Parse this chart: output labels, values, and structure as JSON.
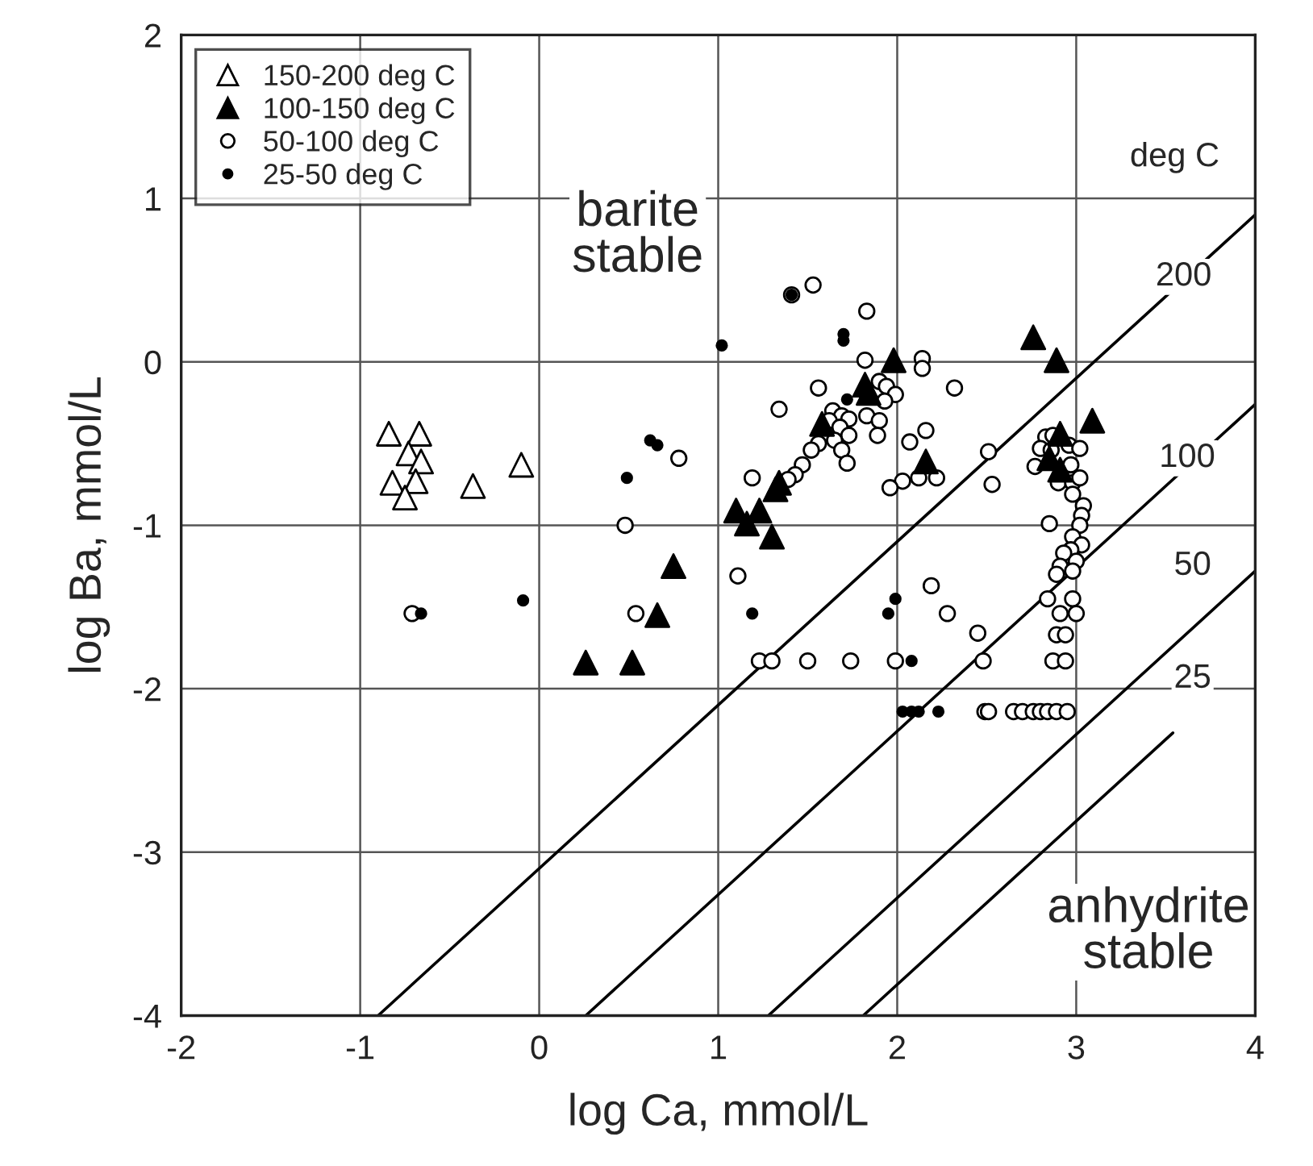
{
  "chart_data": {
    "type": "scatter",
    "xlabel": "log Ca, mmol/L",
    "ylabel": "log Ba, mmol/L",
    "xlim": [
      -2,
      4
    ],
    "ylim": [
      -4,
      2
    ],
    "xticks": [
      -2,
      -1,
      0,
      1,
      2,
      3,
      4
    ],
    "yticks": [
      -4,
      -3,
      -2,
      -1,
      0,
      1,
      2
    ],
    "grid": true,
    "legend": "top left",
    "series": [
      {
        "name": "150-200 deg C",
        "color": "#ffffff",
        "marker": "triangle",
        "x": [
          -0.84,
          -0.67,
          -0.73,
          -0.66,
          -0.82,
          -0.69,
          -0.75,
          -0.37,
          -0.1
        ],
        "values": [
          -0.44,
          -0.44,
          -0.56,
          -0.61,
          -0.74,
          -0.73,
          -0.83,
          -0.76,
          -0.63
        ]
      },
      {
        "name": "100-150 deg C",
        "color": "#000000",
        "marker": "triangle",
        "x": [
          0.75,
          0.66,
          0.26,
          0.52,
          1.1,
          1.23,
          1.16,
          1.3,
          1.32,
          1.34,
          1.58,
          1.82,
          1.98,
          2.16,
          2.76,
          2.89,
          3.09,
          2.91,
          2.85,
          2.91,
          1.84
        ],
        "values": [
          -1.25,
          -1.55,
          -1.84,
          -1.84,
          -0.91,
          -0.91,
          -0.99,
          -1.07,
          -0.78,
          -0.74,
          -0.38,
          -0.14,
          0.01,
          -0.61,
          0.15,
          0.01,
          -0.36,
          -0.44,
          -0.59,
          -0.66,
          -0.19
        ]
      },
      {
        "name": "50-100 deg C",
        "color": "#ffffff",
        "marker": "circle",
        "x": [
          0.78,
          0.48,
          -0.71,
          0.54,
          1.53,
          1.41,
          1.83,
          1.82,
          2.14,
          2.14,
          2.32,
          1.56,
          1.34,
          1.9,
          1.94,
          1.99,
          1.93,
          1.83,
          1.9,
          1.89,
          1.64,
          1.69,
          1.73,
          1.62,
          1.68,
          1.73,
          1.65,
          1.69,
          1.72,
          1.56,
          1.52,
          1.47,
          1.43,
          1.39,
          1.19,
          2.16,
          2.07,
          2.03,
          1.96,
          2.12,
          2.22,
          2.51,
          2.53,
          2.83,
          2.87,
          2.8,
          2.77,
          2.86,
          2.96,
          3.02,
          2.97,
          2.9,
          2.98,
          3.02,
          2.98,
          3.04,
          3.03,
          3.02,
          2.85,
          2.98,
          3.03,
          2.97,
          2.93,
          3.0,
          2.91,
          2.89,
          2.98,
          2.84,
          2.98,
          2.91,
          3.0,
          2.89,
          2.94,
          2.87,
          2.94,
          1.23,
          1.3,
          1.5,
          1.74,
          1.99,
          2.48,
          1.11,
          2.19,
          2.28,
          2.45,
          2.49,
          2.51,
          2.65,
          2.7,
          2.76,
          2.8,
          2.84,
          2.89,
          2.95
        ],
        "values": [
          -0.59,
          -1.0,
          -1.54,
          -1.54,
          0.47,
          0.41,
          0.31,
          0.01,
          0.02,
          -0.04,
          -0.16,
          -0.16,
          -0.29,
          -0.12,
          -0.15,
          -0.2,
          -0.24,
          -0.33,
          -0.36,
          -0.45,
          -0.3,
          -0.33,
          -0.35,
          -0.36,
          -0.4,
          -0.45,
          -0.48,
          -0.54,
          -0.62,
          -0.5,
          -0.54,
          -0.63,
          -0.69,
          -0.72,
          -0.71,
          -0.42,
          -0.49,
          -0.73,
          -0.77,
          -0.71,
          -0.71,
          -0.55,
          -0.75,
          -0.46,
          -0.45,
          -0.53,
          -0.64,
          -0.54,
          -0.51,
          -0.53,
          -0.63,
          -0.74,
          -0.74,
          -0.71,
          -0.81,
          -0.88,
          -0.94,
          -1.0,
          -0.99,
          -1.07,
          -1.12,
          -1.15,
          -1.17,
          -1.22,
          -1.25,
          -1.3,
          -1.28,
          -1.45,
          -1.45,
          -1.54,
          -1.54,
          -1.67,
          -1.67,
          -1.83,
          -1.83,
          -1.83,
          -1.83,
          -1.83,
          -1.83,
          -1.83,
          -1.83,
          -1.31,
          -1.37,
          -1.54,
          -1.66,
          -2.14,
          -2.14,
          -2.14,
          -2.14,
          -2.14,
          -2.14,
          -2.14,
          -2.14,
          -2.14
        ]
      },
      {
        "name": "25-50 deg C",
        "color": "#000000",
        "marker": "circle",
        "x": [
          0.49,
          0.62,
          0.66,
          -0.66,
          -0.09,
          1.02,
          1.41,
          1.7,
          1.7,
          1.72,
          1.19,
          1.99,
          1.95,
          2.08,
          2.03,
          2.08,
          2.12,
          2.23
        ],
        "values": [
          -0.71,
          -0.48,
          -0.51,
          -1.54,
          -1.46,
          0.1,
          0.41,
          0.17,
          0.13,
          -0.23,
          -1.54,
          -1.45,
          -1.54,
          -1.83,
          -2.14,
          -2.14,
          -2.14,
          -2.14
        ]
      },
      {
        "type": "line",
        "color": "#000000",
        "marker": "none",
        "x": [
          -0.9,
          4
        ],
        "values": [
          -4,
          0.9
        ]
      },
      {
        "type": "line",
        "color": "#000000",
        "marker": "none",
        "x": [
          0.26,
          4
        ],
        "values": [
          -4,
          -0.26
        ]
      },
      {
        "type": "line",
        "color": "#000000",
        "marker": "none",
        "x": [
          1.28,
          4
        ],
        "values": [
          -4,
          -1.28
        ]
      },
      {
        "type": "line",
        "color": "#000000",
        "marker": "none",
        "x": [
          1.81,
          3.54
        ],
        "values": [
          -4,
          -2.27
        ]
      }
    ],
    "annotations": [
      "deg C",
      {
        "text": "200",
        "x": 3.6,
        "y": 0.52
      },
      {
        "text": "100",
        "x": 3.62,
        "y": -0.59
      },
      {
        "text": "50",
        "x": 3.65,
        "y": -1.25
      },
      {
        "text": "25",
        "x": 3.65,
        "y": -1.94
      },
      "barite\nstable",
      "anhydrite\nstable"
    ]
  }
}
